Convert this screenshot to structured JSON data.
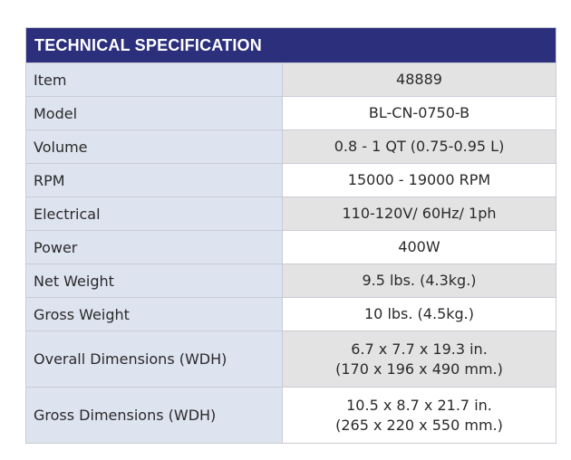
{
  "table": {
    "title": "TECHNICAL SPECIFICATION",
    "rows": [
      {
        "label": "Item",
        "value": [
          "48889"
        ]
      },
      {
        "label": "Model",
        "value": [
          "BL-CN-0750-B"
        ]
      },
      {
        "label": "Volume",
        "value": [
          "0.8 - 1 QT (0.75-0.95 L)"
        ]
      },
      {
        "label": "RPM",
        "value": [
          "15000 - 19000 RPM"
        ]
      },
      {
        "label": "Electrical",
        "value": [
          "110-120V/ 60Hz/ 1ph"
        ]
      },
      {
        "label": "Power",
        "value": [
          "400W"
        ]
      },
      {
        "label": "Net Weight",
        "value": [
          "9.5 lbs. (4.3kg.)"
        ]
      },
      {
        "label": "Gross Weight",
        "value": [
          "10 lbs. (4.5kg.)"
        ]
      },
      {
        "label": "Overall Dimensions (WDH)",
        "value": [
          "6.7 x 7.7 x 19.3 in.",
          "(170 x 196 x 490 mm.)"
        ]
      },
      {
        "label": "Gross Dimensions (WDH)",
        "value": [
          "10.5 x 8.7 x 21.7 in.",
          "(265 x 220 x 550 mm.)"
        ]
      }
    ]
  },
  "colors": {
    "header_bg": "#2b2f7c",
    "label_bg": "#dde3ef",
    "value_alt_bg": "#e3e3e3",
    "value_bg": "#ffffff"
  }
}
